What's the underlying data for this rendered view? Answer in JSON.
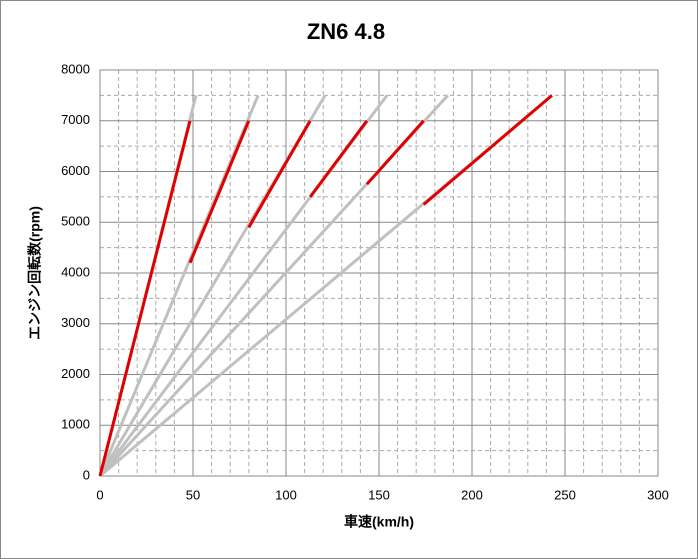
{
  "chart_data": {
    "type": "line",
    "title": "ZN6 4.8",
    "xlabel": "車速(km/h)",
    "ylabel": "エンジン回転数(rpm)",
    "xlim": [
      0,
      300
    ],
    "xticks": [
      0,
      50,
      100,
      150,
      200,
      250,
      300
    ],
    "ylim": [
      0,
      8000
    ],
    "yticks": [
      0,
      1000,
      2000,
      3000,
      4000,
      5000,
      6000,
      7000,
      8000
    ],
    "x_minor_grid": [
      10,
      20,
      30,
      40,
      60,
      70,
      80,
      90,
      110,
      120,
      130,
      140,
      160,
      170,
      180,
      190,
      210,
      220,
      230,
      240,
      260,
      270,
      280,
      290
    ],
    "y_minor_grid": [
      500,
      1500,
      2500,
      3500,
      4500,
      5500,
      6500,
      7500
    ],
    "grid": true,
    "series": [
      {
        "color": "#c0c0c0",
        "x": [
          0,
          51.6
        ],
        "values": [
          0,
          7500
        ]
      },
      {
        "color": "#c0c0c0",
        "x": [
          0,
          85
        ],
        "values": [
          0,
          7500
        ]
      },
      {
        "color": "#c0c0c0",
        "x": [
          0,
          121
        ],
        "values": [
          0,
          7500
        ]
      },
      {
        "color": "#c0c0c0",
        "x": [
          0,
          154.3
        ],
        "values": [
          0,
          7500
        ]
      },
      {
        "color": "#c0c0c0",
        "x": [
          0,
          187
        ],
        "values": [
          0,
          7500
        ]
      },
      {
        "color": "#c0c0c0",
        "x": [
          0,
          243
        ],
        "values": [
          0,
          7500
        ]
      },
      {
        "color": "#e00000",
        "x": [
          0,
          48.4
        ],
        "values": [
          0,
          7000
        ]
      },
      {
        "color": "#e00000",
        "x": [
          48.4,
          80
        ],
        "values": [
          4200,
          7000
        ]
      },
      {
        "color": "#e00000",
        "x": [
          80,
          113
        ],
        "values": [
          4900,
          7000
        ]
      },
      {
        "color": "#e00000",
        "x": [
          113,
          143.5
        ],
        "values": [
          5500,
          7000
        ]
      },
      {
        "color": "#e00000",
        "x": [
          143.5,
          174
        ],
        "values": [
          5750,
          7000
        ]
      },
      {
        "color": "#e00000",
        "x": [
          174,
          243
        ],
        "values": [
          5350,
          7500
        ]
      }
    ]
  }
}
